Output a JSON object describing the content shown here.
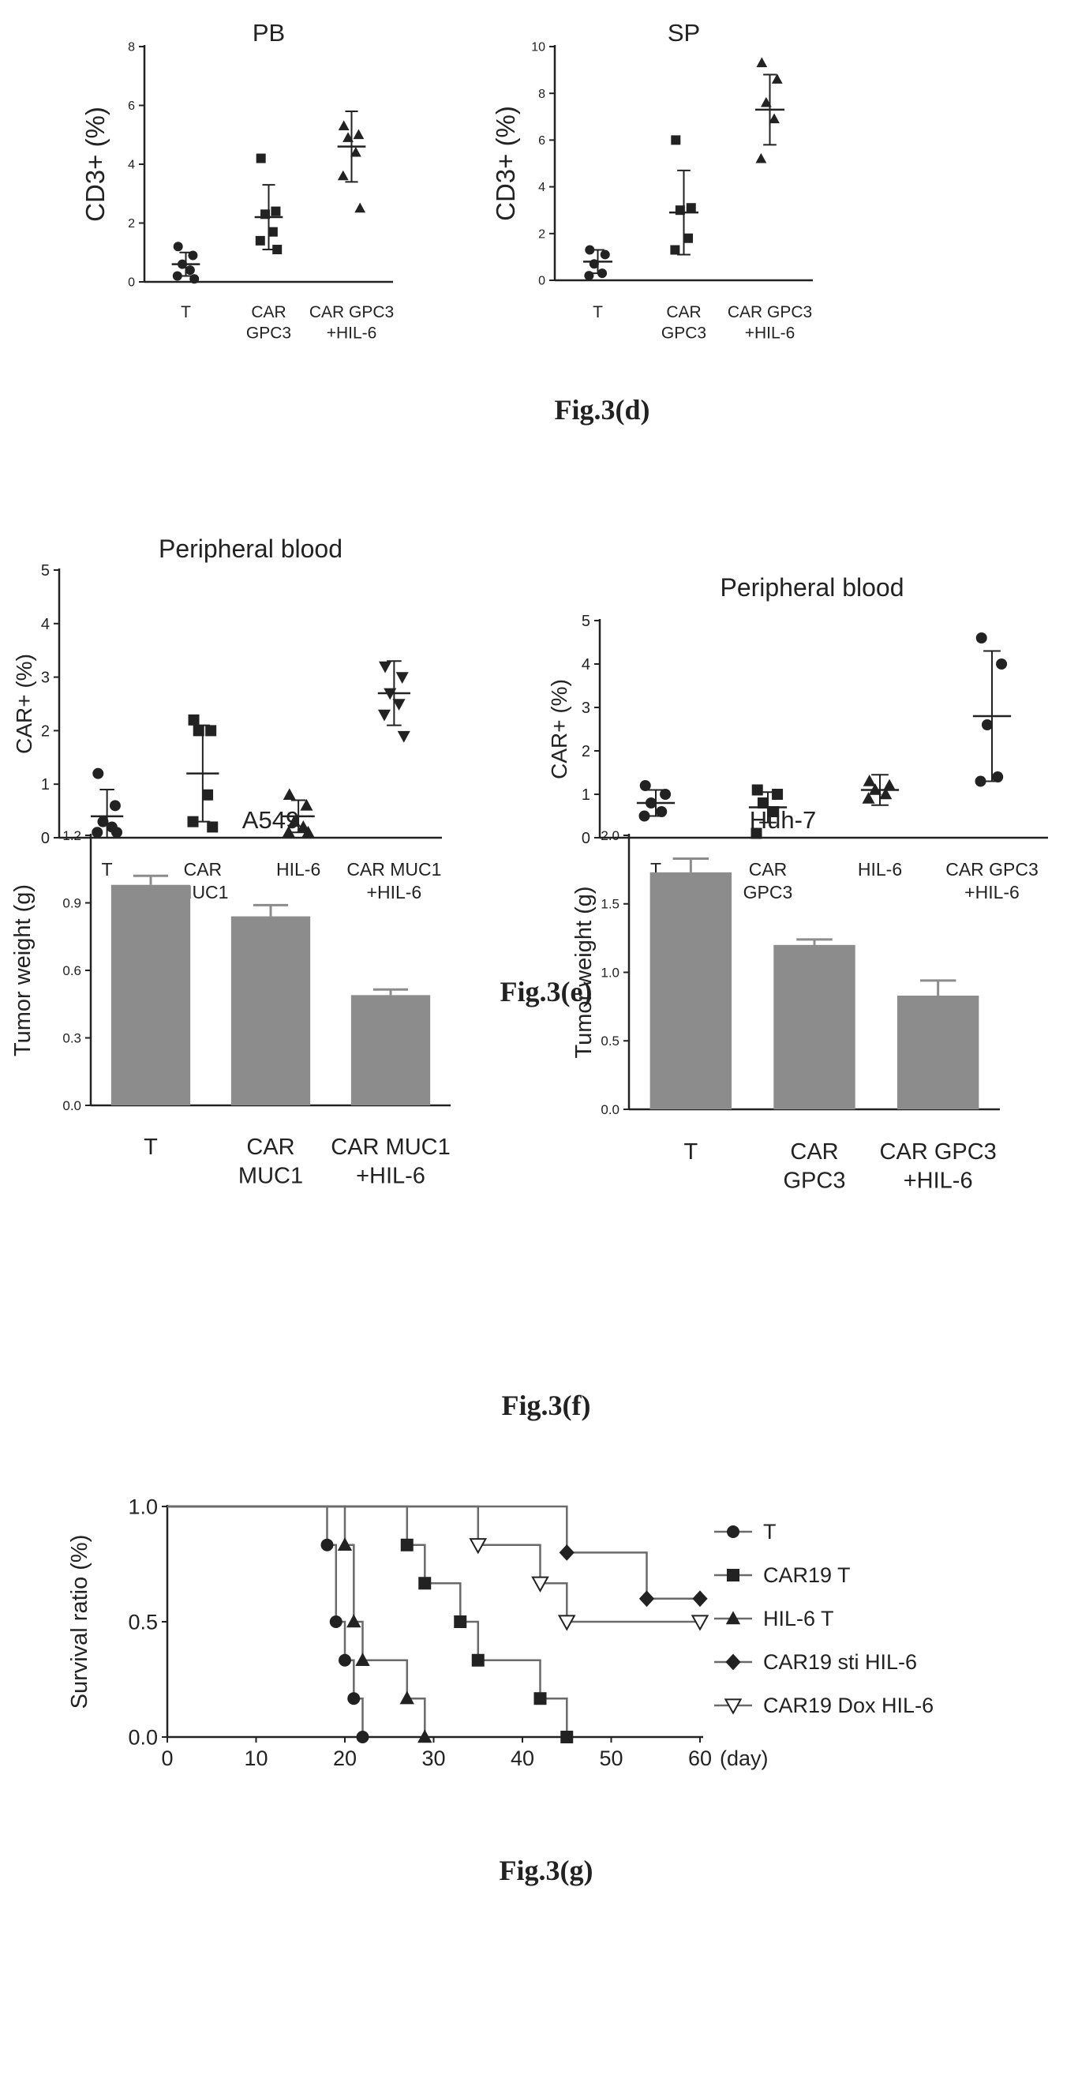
{
  "chart_data": [
    {
      "id": "d1",
      "type": "scatter",
      "title": "PB",
      "ylabel": "CD3+ (%)",
      "ylim": [
        0,
        8
      ],
      "yticks": [
        "0",
        "2",
        "4",
        "6",
        "8"
      ],
      "categories": [
        "T",
        "CAR\nGPC3",
        "CAR GPC3\n+HIL-6"
      ],
      "groups": [
        {
          "marker": "circle",
          "points": [
            1.2,
            0.9,
            0.6,
            0.4,
            0.2,
            0.1
          ],
          "mean": 0.6,
          "sd": 0.4
        },
        {
          "marker": "square",
          "points": [
            4.2,
            2.4,
            2.3,
            1.7,
            1.4,
            1.1
          ],
          "mean": 2.2,
          "sd": 1.1
        },
        {
          "marker": "triangle",
          "points": [
            5.3,
            5.0,
            4.9,
            4.4,
            3.6,
            2.5
          ],
          "mean": 4.6,
          "sd": 1.2
        }
      ]
    },
    {
      "id": "d2",
      "type": "scatter",
      "title": "SP",
      "ylabel": "CD3+ (%)",
      "ylim": [
        0,
        10
      ],
      "yticks": [
        "0",
        "2",
        "4",
        "6",
        "8",
        "10"
      ],
      "categories": [
        "T",
        "CAR\nGPC3",
        "CAR GPC3\n+HIL-6"
      ],
      "groups": [
        {
          "marker": "circle",
          "points": [
            1.3,
            1.1,
            0.7,
            0.3,
            0.2
          ],
          "mean": 0.8,
          "sd": 0.5
        },
        {
          "marker": "square",
          "points": [
            6.0,
            3.1,
            3.0,
            1.8,
            1.3
          ],
          "mean": 2.9,
          "sd": 1.8
        },
        {
          "marker": "triangle",
          "points": [
            9.3,
            8.6,
            7.6,
            6.9,
            5.2
          ],
          "mean": 7.3,
          "sd": 1.5
        }
      ]
    },
    {
      "id": "e1",
      "type": "scatter",
      "title": "Peripheral blood",
      "ylabel": "CAR+ (%)",
      "ylim": [
        0,
        5
      ],
      "yticks": [
        "0",
        "1",
        "2",
        "3",
        "4",
        "5"
      ],
      "categories": [
        "T",
        "CAR\nMUC1",
        "HIL-6",
        "CAR MUC1\n+HIL-6"
      ],
      "groups": [
        {
          "marker": "circle",
          "points": [
            1.2,
            0.6,
            0.3,
            0.2,
            0.1,
            0.1
          ],
          "mean": 0.4,
          "sd": 0.5
        },
        {
          "marker": "square",
          "points": [
            2.2,
            2.0,
            2.0,
            0.8,
            0.3,
            0.2
          ],
          "mean": 1.2,
          "sd": 0.9
        },
        {
          "marker": "triangle",
          "points": [
            0.8,
            0.6,
            0.3,
            0.2,
            0.1,
            0.1
          ],
          "mean": 0.4,
          "sd": 0.3
        },
        {
          "marker": "triangle-down",
          "points": [
            3.2,
            3.0,
            2.7,
            2.5,
            2.3,
            1.9
          ],
          "mean": 2.7,
          "sd": 0.6
        }
      ]
    },
    {
      "id": "e2",
      "type": "scatter",
      "title": "Peripheral blood",
      "ylabel": "CAR+ (%)",
      "ylim": [
        0,
        5
      ],
      "yticks": [
        "0",
        "1",
        "2",
        "3",
        "4",
        "5"
      ],
      "categories": [
        "T",
        "CAR\nGPC3",
        "HIL-6",
        "CAR GPC3\n+HIL-6"
      ],
      "groups": [
        {
          "marker": "circle",
          "points": [
            1.2,
            1.0,
            0.8,
            0.6,
            0.5
          ],
          "mean": 0.8,
          "sd": 0.3
        },
        {
          "marker": "square",
          "points": [
            1.1,
            1.0,
            0.8,
            0.6,
            0.1
          ],
          "mean": 0.7,
          "sd": 0.35
        },
        {
          "marker": "triangle",
          "points": [
            1.3,
            1.2,
            1.1,
            1.0,
            0.9
          ],
          "mean": 1.1,
          "sd": 0.35
        },
        {
          "marker": "circle",
          "points": [
            4.6,
            4.0,
            2.6,
            1.4,
            1.3
          ],
          "mean": 2.8,
          "sd": 1.5
        }
      ]
    },
    {
      "id": "f1",
      "type": "bar",
      "title": "A549",
      "ylabel": "Tumor weight (g)",
      "ylim": [
        0,
        1.2
      ],
      "yticks": [
        "0.0",
        "0.3",
        "0.6",
        "0.9",
        "1.2"
      ],
      "categories": [
        "T",
        "CAR\nMUC1",
        "CAR MUC1\n+HIL-6"
      ],
      "values": [
        0.98,
        0.84,
        0.49
      ],
      "errors": [
        0.04,
        0.05,
        0.025
      ]
    },
    {
      "id": "f2",
      "type": "bar",
      "title": "Huh-7",
      "ylabel": "Tumor weight (g)",
      "ylim": [
        0,
        2.0
      ],
      "yticks": [
        "0.0",
        "0.5",
        "1.0",
        "1.5",
        "2.0"
      ],
      "categories": [
        "T",
        "CAR\nGPC3",
        "CAR GPC3\n+HIL-6"
      ],
      "values": [
        1.73,
        1.2,
        0.83
      ],
      "errors": [
        0.1,
        0.04,
        0.11
      ]
    },
    {
      "id": "g",
      "type": "line",
      "title": "",
      "ylabel": "Survival ratio (%)",
      "xlabel": "(day)",
      "xlim": [
        0,
        60
      ],
      "ylim": [
        0,
        1.0
      ],
      "xticks": [
        "0",
        "10",
        "20",
        "30",
        "40",
        "50",
        "60"
      ],
      "yticks": [
        "0.0",
        "0.5",
        "1.0"
      ],
      "legend_position": "right",
      "series": [
        {
          "name": "T",
          "marker": "circle",
          "points": [
            [
              0,
              1
            ],
            [
              18,
              1
            ],
            [
              18,
              0.833
            ],
            [
              19,
              0.833
            ],
            [
              19,
              0.5
            ],
            [
              20,
              0.5
            ],
            [
              20,
              0.333
            ],
            [
              21,
              0.333
            ],
            [
              21,
              0.167
            ],
            [
              22,
              0.167
            ],
            [
              22,
              0
            ]
          ],
          "marks": [
            [
              18,
              0.833
            ],
            [
              19,
              0.5
            ],
            [
              20,
              0.333
            ],
            [
              21,
              0.167
            ],
            [
              22,
              0
            ]
          ]
        },
        {
          "name": "CAR19 T",
          "marker": "square",
          "points": [
            [
              0,
              1
            ],
            [
              27,
              1
            ],
            [
              27,
              0.833
            ],
            [
              29,
              0.833
            ],
            [
              29,
              0.667
            ],
            [
              33,
              0.667
            ],
            [
              33,
              0.5
            ],
            [
              35,
              0.5
            ],
            [
              35,
              0.333
            ],
            [
              42,
              0.333
            ],
            [
              42,
              0.167
            ],
            [
              45,
              0.167
            ],
            [
              45,
              0
            ]
          ],
          "marks": [
            [
              27,
              0.833
            ],
            [
              29,
              0.667
            ],
            [
              33,
              0.5
            ],
            [
              35,
              0.333
            ],
            [
              42,
              0.167
            ],
            [
              45,
              0
            ]
          ]
        },
        {
          "name": "HIL-6 T",
          "marker": "triangle",
          "points": [
            [
              0,
              1
            ],
            [
              20,
              1
            ],
            [
              20,
              0.833
            ],
            [
              21,
              0.833
            ],
            [
              21,
              0.5
            ],
            [
              22,
              0.5
            ],
            [
              22,
              0.333
            ],
            [
              27,
              0.333
            ],
            [
              27,
              0.167
            ],
            [
              29,
              0.167
            ],
            [
              29,
              0
            ]
          ],
          "marks": [
            [
              20,
              0.833
            ],
            [
              21,
              0.5
            ],
            [
              22,
              0.333
            ],
            [
              27,
              0.167
            ],
            [
              29,
              0
            ]
          ]
        },
        {
          "name": "CAR19 sti HIL-6",
          "marker": "diamond",
          "points": [
            [
              0,
              1
            ],
            [
              45,
              1
            ],
            [
              45,
              0.8
            ],
            [
              54,
              0.8
            ],
            [
              54,
              0.6
            ],
            [
              60,
              0.6
            ]
          ],
          "marks": [
            [
              45,
              0.8
            ],
            [
              54,
              0.6
            ],
            [
              60,
              0.6
            ]
          ]
        },
        {
          "name": "CAR19 Dox HIL-6",
          "marker": "triangle-down-open",
          "points": [
            [
              0,
              1
            ],
            [
              35,
              1
            ],
            [
              35,
              0.833
            ],
            [
              42,
              0.833
            ],
            [
              42,
              0.667
            ],
            [
              45,
              0.667
            ],
            [
              45,
              0.5
            ],
            [
              60,
              0.5
            ]
          ],
          "marks": [
            [
              35,
              0.833
            ],
            [
              42,
              0.667
            ],
            [
              45,
              0.5
            ],
            [
              60,
              0.5
            ]
          ]
        }
      ]
    }
  ],
  "captions": {
    "d": "Fig.3(d)",
    "e": "Fig.3(e)",
    "f": "Fig.3(f)",
    "g": "Fig.3(g)"
  },
  "colors": {
    "ink": "#222222",
    "bar": "#8c8c8c",
    "line": "#6a6a6a"
  }
}
